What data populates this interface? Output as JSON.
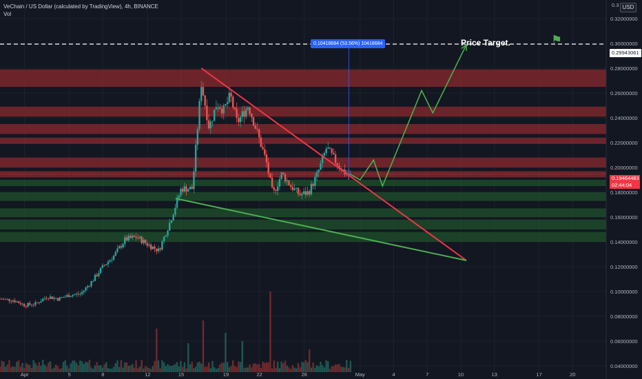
{
  "header": {
    "title": "VeChain / US Dollar (calculated by TradingView), 4h, BINANCE",
    "volume_label": "Vol",
    "currency": "USD"
  },
  "annotations": {
    "price_target_label": "Price Target.",
    "measure_label": "0.10418684 (53.56%) 10418684",
    "flag_icon": "flag-icon"
  },
  "price_labels": {
    "target": "0.29943061",
    "current": "0.19464483",
    "countdown": "02:44:04"
  },
  "colors": {
    "background": "#131722",
    "up": "#26a69a",
    "down": "#ef5350",
    "resistance_line": "#f23645",
    "support_line": "#4caf50",
    "red_zone": "#8b2a2e",
    "green_zone": "#1e4d2b"
  },
  "chart_data": {
    "type": "candlestick",
    "title": "VeChain / US Dollar (calculated by TradingView), 4h, BINANCE",
    "y_axis": {
      "side": "right",
      "ticks": [
        0.32,
        0.3,
        0.28,
        0.26,
        0.24,
        0.22,
        0.2,
        0.18,
        0.16,
        0.14,
        0.12,
        0.1,
        0.08,
        0.06,
        0.04
      ],
      "tick_labels": [
        "0.32000000",
        "0.30000000",
        "0.28000000",
        "0.26000000",
        "0.24000000",
        "0.22000000",
        "0.20000000",
        "0.18000000",
        "0.16000000",
        "0.14000000",
        "0.12000000",
        "0.10000000",
        "0.08000000",
        "0.06000000",
        "0.04000000"
      ],
      "range": [
        0.035,
        0.335
      ],
      "top_label": "0.3"
    },
    "x_axis": {
      "ticks": [
        "Apr",
        "5",
        "8",
        "12",
        "15",
        "19",
        "22",
        "26",
        "May",
        "4",
        "7",
        "10",
        "13",
        "17",
        "20"
      ],
      "day_positions": [
        1,
        5,
        8,
        12,
        15,
        19,
        22,
        26,
        31,
        34,
        37,
        40,
        43,
        47,
        50
      ],
      "range_days": [
        -1.2,
        53
      ]
    },
    "price_path": [
      [
        -1.2,
        0.094
      ],
      [
        0,
        0.093
      ],
      [
        1,
        0.089
      ],
      [
        2,
        0.09
      ],
      [
        3,
        0.096
      ],
      [
        4,
        0.094
      ],
      [
        5,
        0.097
      ],
      [
        6,
        0.098
      ],
      [
        7,
        0.108
      ],
      [
        8,
        0.12
      ],
      [
        9,
        0.129
      ],
      [
        10,
        0.142
      ],
      [
        11,
        0.144
      ],
      [
        12,
        0.138
      ],
      [
        13,
        0.133
      ],
      [
        14,
        0.156
      ],
      [
        15,
        0.183
      ],
      [
        16,
        0.183
      ],
      [
        16.8,
        0.268
      ],
      [
        17.5,
        0.232
      ],
      [
        18.2,
        0.252
      ],
      [
        18.8,
        0.246
      ],
      [
        19.4,
        0.258
      ],
      [
        20,
        0.236
      ],
      [
        21,
        0.25
      ],
      [
        21.8,
        0.228
      ],
      [
        22.6,
        0.205
      ],
      [
        23.2,
        0.178
      ],
      [
        24,
        0.195
      ],
      [
        24.8,
        0.185
      ],
      [
        25.6,
        0.178
      ],
      [
        26.4,
        0.18
      ],
      [
        27.2,
        0.195
      ],
      [
        28,
        0.216
      ],
      [
        28.8,
        0.205
      ],
      [
        29.6,
        0.196
      ],
      [
        30.2,
        0.193
      ]
    ],
    "forecast_path": [
      [
        30.2,
        0.194
      ],
      [
        31,
        0.19
      ],
      [
        32.2,
        0.206
      ],
      [
        33,
        0.185
      ],
      [
        36.5,
        0.262
      ],
      [
        37.5,
        0.244
      ],
      [
        40.5,
        0.299
      ]
    ],
    "trendlines": [
      {
        "name": "resistance",
        "points": [
          [
            16.8,
            0.28
          ],
          [
            40.5,
            0.125
          ]
        ]
      },
      {
        "name": "support",
        "points": [
          [
            14.5,
            0.175
          ],
          [
            40.5,
            0.125
          ]
        ]
      }
    ],
    "zones": {
      "resistance": [
        [
          0.265,
          0.279
        ],
        [
          0.241,
          0.249
        ],
        [
          0.227,
          0.235
        ],
        [
          0.219,
          0.224
        ],
        [
          0.2,
          0.208
        ],
        [
          0.192,
          0.197
        ]
      ],
      "support": [
        [
          0.185,
          0.19
        ],
        [
          0.173,
          0.18
        ],
        [
          0.16,
          0.167
        ],
        [
          0.15,
          0.158
        ],
        [
          0.14,
          0.148
        ]
      ]
    },
    "target_price": 0.29943061,
    "current_price": 0.19464483,
    "volume_spikes": [
      [
        17,
        0.5
      ],
      [
        19,
        0.38
      ],
      [
        20.5,
        0.3
      ],
      [
        23,
        0.78
      ],
      [
        26.5,
        0.22
      ],
      [
        12.8,
        0.42
      ],
      [
        15.6,
        0.28
      ]
    ],
    "grid": true,
    "legend": "none"
  }
}
